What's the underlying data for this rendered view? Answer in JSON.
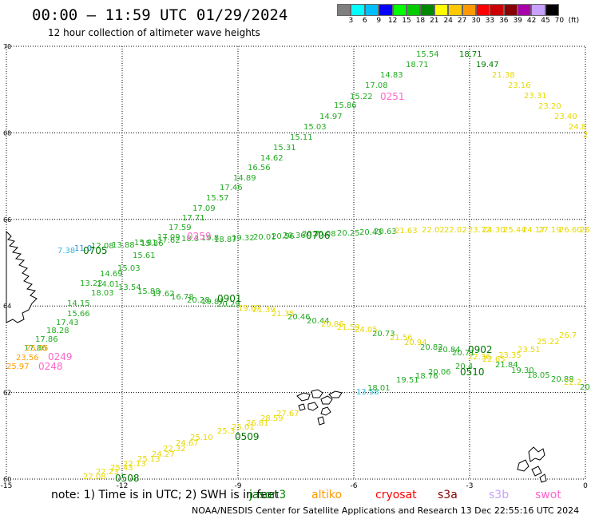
{
  "header": {
    "title": "00:00 – 11:59 UTC 01/29/2024",
    "subtitle": "12 hour collection of altimeter wave heights"
  },
  "colorbar": {
    "unit": "(ft)",
    "labels": [
      "3",
      "6",
      "9",
      "12",
      "15",
      "18",
      "21",
      "24",
      "27",
      "30",
      "33",
      "36",
      "39",
      "42",
      "45",
      "70"
    ],
    "colors": [
      "#7f7f7f",
      "#00ffff",
      "#00bfff",
      "#0000ff",
      "#00ff00",
      "#00cc00",
      "#008800",
      "#ffff00",
      "#ffc800",
      "#ff9900",
      "#ff0000",
      "#cc0000",
      "#880000",
      "#aa00aa",
      "#c8a0ff",
      "#000000"
    ]
  },
  "map": {
    "lon_ticks": [
      "-15",
      "-12",
      "-9",
      "-6",
      "-3",
      "0"
    ],
    "lat_ticks": [
      "70",
      "68",
      "66",
      "64",
      "62",
      "60"
    ],
    "lon_range": [
      -15,
      0
    ],
    "lat_range": [
      60,
      70
    ]
  },
  "tracks": {
    "jason3_north": {
      "color": "#00cc00",
      "labels": [
        "15.54",
        "18.71",
        "14.83",
        "17.08",
        "15.22",
        "15.86",
        "14.97",
        "15.03",
        "15.11",
        "15.31",
        "14.62",
        "16.56",
        "14.89",
        "17.46",
        "15.57",
        "17.09",
        "17.71",
        "17.59",
        "17.09",
        "15.36",
        "15.61",
        "15.03",
        "14.69",
        "13.22",
        "14.01",
        "18.03",
        "14.15",
        "15.66",
        "17.43",
        "18.28",
        "17.86",
        "17.86"
      ],
      "pass": "0251"
    },
    "north_yellow": {
      "color": "#e8d800",
      "labels": [
        "19.47",
        "21.38",
        "23.16",
        "23.31",
        "23.20",
        "23.40",
        "24.8",
        "2"
      ]
    },
    "lat66_row": {
      "labels": [
        "7.38",
        "11.0",
        "12.08",
        "13.88",
        "15.81",
        "17.62",
        "18.3",
        "19.8",
        "18.87",
        "19.32",
        "20.01",
        "20.56",
        "20.36",
        "20.7",
        "20.08",
        "20.25",
        "20.43",
        "20.63",
        "21.63",
        "22.02",
        "22.02",
        "23.72",
        "24.30",
        "25.44",
        "24.17",
        "27.19",
        "26.60",
        "26."
      ],
      "passes": [
        "0705",
        "0259",
        "0706"
      ]
    },
    "diag_south": {
      "labels": [
        "13.54",
        "15.88",
        "17.62",
        "16.78",
        "20.28",
        "19.87",
        "20.29",
        "19.67",
        "21.39",
        "21.35",
        "20.46",
        "20.44",
        "20.86",
        "21.59",
        "24.05",
        "20.73",
        "21.56",
        "20.94",
        "20.82",
        "20.84",
        "20.71",
        "22.36",
        "22.65",
        "23.35",
        "23.51",
        "26.7",
        "25.22"
      ],
      "passes": [
        "0901",
        "0902"
      ]
    },
    "west_coast": {
      "labels": [
        "25.65",
        "23.56",
        "25.97"
      ],
      "passes": [
        "0249",
        "0248"
      ]
    },
    "east_rise": {
      "labels": [
        "13.58",
        "18.01",
        "19.51",
        "18.76",
        "20.06",
        "20.4",
        "21.84",
        "19.30",
        "18.05",
        "20.88",
        "20.",
        "22.2"
      ],
      "passes": [
        "0510"
      ]
    },
    "southwest_yellow": {
      "labels": [
        "27.67",
        "28.59",
        "26.81",
        "25.01",
        "25.3",
        "25.10",
        "24.67",
        "22.32",
        "24.27",
        "25.13",
        "22.13",
        "22.23",
        "25.43",
        "22.08"
      ],
      "passes": [
        "0509",
        "0508"
      ]
    }
  },
  "footer": {
    "note": "note:  1) Time is in UTC; 2) SWH is in feet",
    "satellites": [
      {
        "name": "jason3",
        "color": "#008800"
      },
      {
        "name": "altiko",
        "color": "#ff9900"
      },
      {
        "name": "cryosat",
        "color": "#ff0000"
      },
      {
        "name": "s3a",
        "color": "#880000"
      },
      {
        "name": "s3b",
        "color": "#c8a0ff"
      },
      {
        "name": "swot",
        "color": "#ff66cc"
      }
    ],
    "credit": "NOAA/NESDIS Center for Satellite Applications and Research     13 Dec 22:55:16 UTC 2024"
  }
}
